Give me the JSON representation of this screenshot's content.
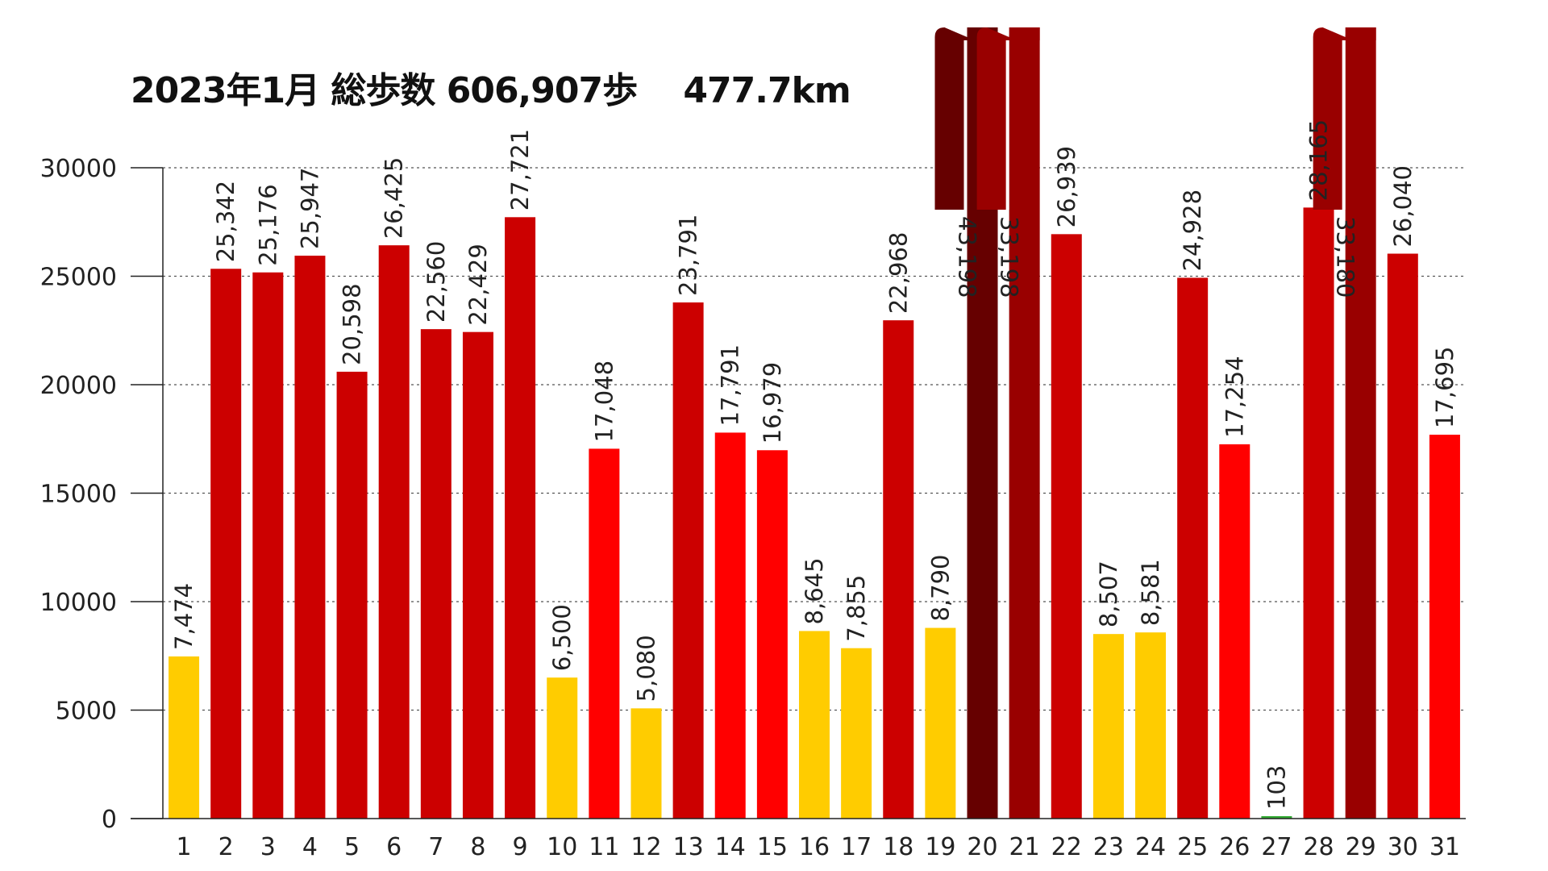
{
  "chart_data": {
    "type": "bar",
    "title": "2023年1月 総歩数 606,907歩　 477.7km",
    "xlabel": "",
    "ylabel": "",
    "ylim": [
      0,
      30000
    ],
    "yticks": [
      0,
      5000,
      10000,
      15000,
      20000,
      25000,
      30000
    ],
    "grid": "horizontal dotted",
    "categories": [
      "1",
      "2",
      "3",
      "4",
      "5",
      "6",
      "7",
      "8",
      "9",
      "10",
      "11",
      "12",
      "13",
      "14",
      "15",
      "16",
      "17",
      "18",
      "19",
      "20",
      "21",
      "22",
      "23",
      "24",
      "25",
      "26",
      "27",
      "28",
      "29",
      "30",
      "31"
    ],
    "values": [
      7474,
      25342,
      25176,
      25947,
      20598,
      26425,
      22560,
      22429,
      27721,
      6500,
      17048,
      5080,
      23791,
      17791,
      16979,
      8645,
      7855,
      22968,
      8790,
      43198,
      33198,
      26939,
      8507,
      8581,
      24928,
      17254,
      103,
      28165,
      33180,
      26040,
      17695
    ],
    "value_labels": [
      "7,474",
      "25,342",
      "25,176",
      "25,947",
      "20,598",
      "26,425",
      "22,560",
      "22,429",
      "27,721",
      "6,500",
      "17,048",
      "5,080",
      "23,791",
      "17,791",
      "16,979",
      "8,645",
      "7,855",
      "22,968",
      "8,790",
      "43,198",
      "33,198",
      "26,939",
      "8,507",
      "8,581",
      "24,928",
      "17,254",
      "103",
      "28,165",
      "33,180",
      "26,040",
      "17,695"
    ],
    "bar_colors": [
      "#ffcc00",
      "#cc0000",
      "#cc0000",
      "#cc0000",
      "#cc0000",
      "#cc0000",
      "#cc0000",
      "#cc0000",
      "#cc0000",
      "#ffcc00",
      "#ff0000",
      "#ffcc00",
      "#cc0000",
      "#ff0000",
      "#ff0000",
      "#ffcc00",
      "#ffcc00",
      "#cc0000",
      "#ffcc00",
      "#660000",
      "#990000",
      "#cc0000",
      "#ffcc00",
      "#ffcc00",
      "#cc0000",
      "#ff0000",
      "#33aa33",
      "#cc0000",
      "#990000",
      "#cc0000",
      "#ff0000"
    ],
    "color_legend": {
      "green": "#33aa33",
      "yellow": "#ffcc00",
      "red": "#ff0000",
      "dark_red": "#cc0000",
      "deeper_red": "#990000",
      "maroon": "#660000"
    }
  }
}
